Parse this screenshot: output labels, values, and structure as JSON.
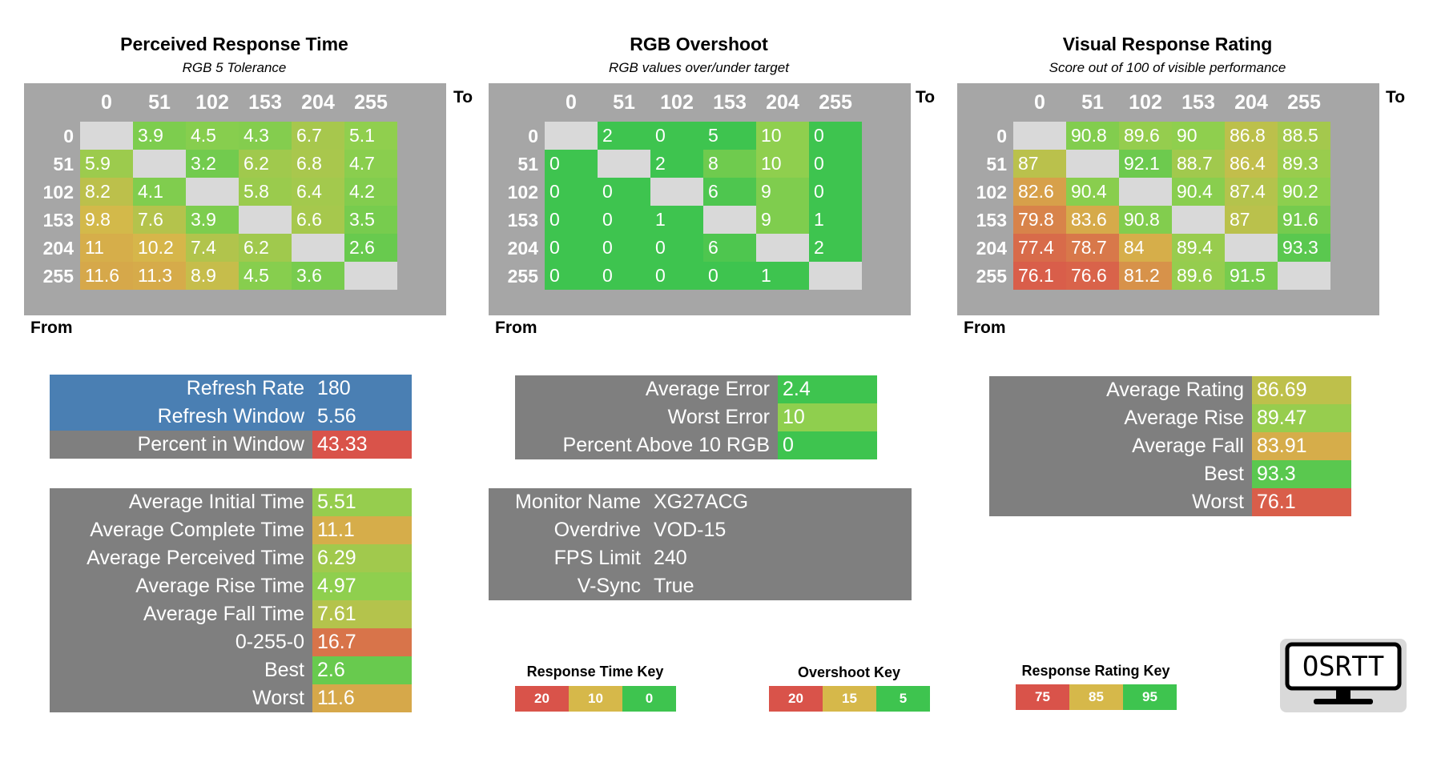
{
  "colors": {
    "red": "#d9534a",
    "yellow": "#d6b84a",
    "green": "#3ec44f",
    "blue": "#4a7fb3",
    "gray": "#7f7f7f",
    "header_gray": "#a6a6a6",
    "diag": "#d9d9d9"
  },
  "icons": {
    "logo": "osrtt-monitor-logo"
  },
  "chart_data": [
    {
      "type": "heatmap",
      "title": "Perceived Response Time",
      "subtitle": "RGB 5 Tolerance",
      "xlabel": "To",
      "ylabel": "From",
      "columns": [
        "0",
        "51",
        "102",
        "153",
        "204",
        "255"
      ],
      "rows": [
        "0",
        "51",
        "102",
        "153",
        "204",
        "255"
      ],
      "values": [
        [
          null,
          "3.9",
          "4.5",
          "4.3",
          "6.7",
          "5.1"
        ],
        [
          "5.9",
          null,
          "3.2",
          "6.2",
          "6.8",
          "4.7"
        ],
        [
          "8.2",
          "4.1",
          null,
          "5.8",
          "6.4",
          "4.2"
        ],
        [
          "9.8",
          "7.6",
          "3.9",
          null,
          "6.6",
          "3.5"
        ],
        [
          "11",
          "10.2",
          "7.4",
          "6.2",
          null,
          "2.6"
        ],
        [
          "11.6",
          "11.3",
          "8.9",
          "4.5",
          "3.6",
          null
        ]
      ],
      "scale": {
        "good": 0,
        "mid": 10,
        "bad": 20
      }
    },
    {
      "type": "heatmap",
      "title": "RGB Overshoot",
      "subtitle": "RGB values over/under target",
      "xlabel": "To",
      "ylabel": "From",
      "columns": [
        "0",
        "51",
        "102",
        "153",
        "204",
        "255"
      ],
      "rows": [
        "0",
        "51",
        "102",
        "153",
        "204",
        "255"
      ],
      "values": [
        [
          null,
          "2",
          "0",
          "5",
          "10",
          "0"
        ],
        [
          "0",
          null,
          "2",
          "8",
          "10",
          "0"
        ],
        [
          "0",
          "0",
          null,
          "6",
          "9",
          "0"
        ],
        [
          "0",
          "0",
          "1",
          null,
          "9",
          "1"
        ],
        [
          "0",
          "0",
          "0",
          "6",
          null,
          "2"
        ],
        [
          "0",
          "0",
          "0",
          "0",
          "1",
          null
        ]
      ],
      "scale": {
        "good": 5,
        "mid": 15,
        "bad": 20
      }
    },
    {
      "type": "heatmap",
      "title": "Visual Response Rating",
      "subtitle": "Score out of 100 of visible performance",
      "xlabel": "To",
      "ylabel": "From",
      "columns": [
        "0",
        "51",
        "102",
        "153",
        "204",
        "255"
      ],
      "rows": [
        "0",
        "51",
        "102",
        "153",
        "204",
        "255"
      ],
      "values": [
        [
          null,
          "90.8",
          "89.6",
          "90",
          "86.8",
          "88.5"
        ],
        [
          "87",
          null,
          "92.1",
          "88.7",
          "86.4",
          "89.3"
        ],
        [
          "82.6",
          "90.4",
          null,
          "90.4",
          "87.4",
          "90.2"
        ],
        [
          "79.8",
          "83.6",
          "90.8",
          null,
          "87",
          "91.6"
        ],
        [
          "77.4",
          "78.7",
          "84",
          "89.4",
          null,
          "93.3"
        ],
        [
          "76.1",
          "76.6",
          "81.2",
          "89.6",
          "91.5",
          null
        ]
      ],
      "scale": {
        "good": 95,
        "mid": 85,
        "bad": 75
      }
    }
  ],
  "refresh_panel": [
    {
      "label": "Refresh Rate",
      "value": "180"
    },
    {
      "label": "Refresh Window",
      "value": "5.56"
    },
    {
      "label": "Percent in Window",
      "value": "43.33"
    }
  ],
  "time_panel": [
    {
      "label": "Average Initial Time",
      "value": "5.51"
    },
    {
      "label": "Average Complete Time",
      "value": "11.1"
    },
    {
      "label": "Average Perceived Time",
      "value": "6.29"
    },
    {
      "label": "Average Rise Time",
      "value": "4.97"
    },
    {
      "label": "Average Fall Time",
      "value": "7.61"
    },
    {
      "label": "0-255-0",
      "value": "16.7"
    },
    {
      "label": "Best",
      "value": "2.6"
    },
    {
      "label": "Worst",
      "value": "11.6"
    }
  ],
  "error_panel": [
    {
      "label": "Average Error",
      "value": "2.4"
    },
    {
      "label": "Worst Error",
      "value": "10"
    },
    {
      "label": "Percent Above 10 RGB",
      "value": "0"
    }
  ],
  "monitor_panel": [
    {
      "label": "Monitor Name",
      "value": "XG27ACG"
    },
    {
      "label": "Overdrive",
      "value": "VOD-15"
    },
    {
      "label": "FPS Limit",
      "value": "240"
    },
    {
      "label": "V-Sync",
      "value": "True"
    }
  ],
  "rating_panel": [
    {
      "label": "Average Rating",
      "value": "86.69"
    },
    {
      "label": "Average Rise",
      "value": "89.47"
    },
    {
      "label": "Average Fall",
      "value": "83.91"
    },
    {
      "label": "Best",
      "value": "93.3"
    },
    {
      "label": "Worst",
      "value": "76.1"
    }
  ],
  "keys": [
    {
      "title": "Response Time Key",
      "values": [
        "20",
        "10",
        "0"
      ]
    },
    {
      "title": "Overshoot Key",
      "values": [
        "20",
        "15",
        "5"
      ]
    },
    {
      "title": "Response Rating Key",
      "values": [
        "75",
        "85",
        "95"
      ]
    }
  ],
  "logo_text": "OSRTT"
}
